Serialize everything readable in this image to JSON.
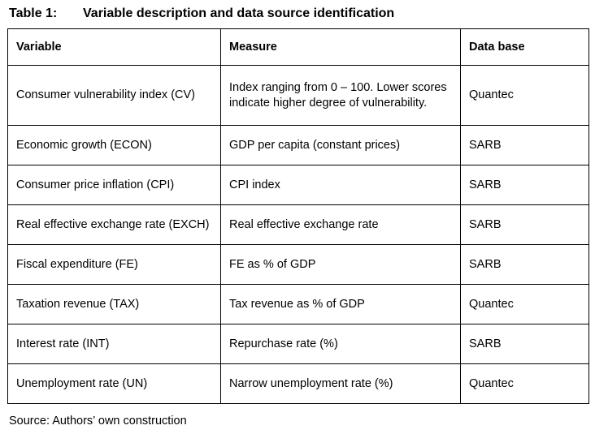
{
  "page": {
    "title_label": "Table 1:",
    "title_text": "Variable description and data source identification",
    "source_note": "Source: Authors’ own construction"
  },
  "table": {
    "columns": [
      {
        "label": "Variable"
      },
      {
        "label": "Measure"
      },
      {
        "label": "Data base"
      }
    ],
    "rows": [
      {
        "variable": "Consumer vulnerability index (CV)",
        "measure": "Index ranging from 0 – 100. Lower scores indicate higher degree of vulnerability.",
        "database": "Quantec"
      },
      {
        "variable": "Economic growth (ECON)",
        "measure": "GDP per capita (constant prices)",
        "database": "SARB"
      },
      {
        "variable": "Consumer price inflation (CPI)",
        "measure": "CPI index",
        "database": "SARB"
      },
      {
        "variable": "Real effective exchange rate (EXCH)",
        "measure": "Real effective exchange rate",
        "database": "SARB"
      },
      {
        "variable": "Fiscal expenditure (FE)",
        "measure": "FE as % of GDP",
        "database": "SARB"
      },
      {
        "variable": "Taxation revenue (TAX)",
        "measure": "Tax revenue as % of GDP",
        "database": "Quantec"
      },
      {
        "variable": "Interest rate (INT)",
        "measure": "Repurchase rate (%)",
        "database": "SARB"
      },
      {
        "variable": "Unemployment rate (UN)",
        "measure": "Narrow unemployment rate (%)",
        "database": "Quantec"
      }
    ]
  }
}
